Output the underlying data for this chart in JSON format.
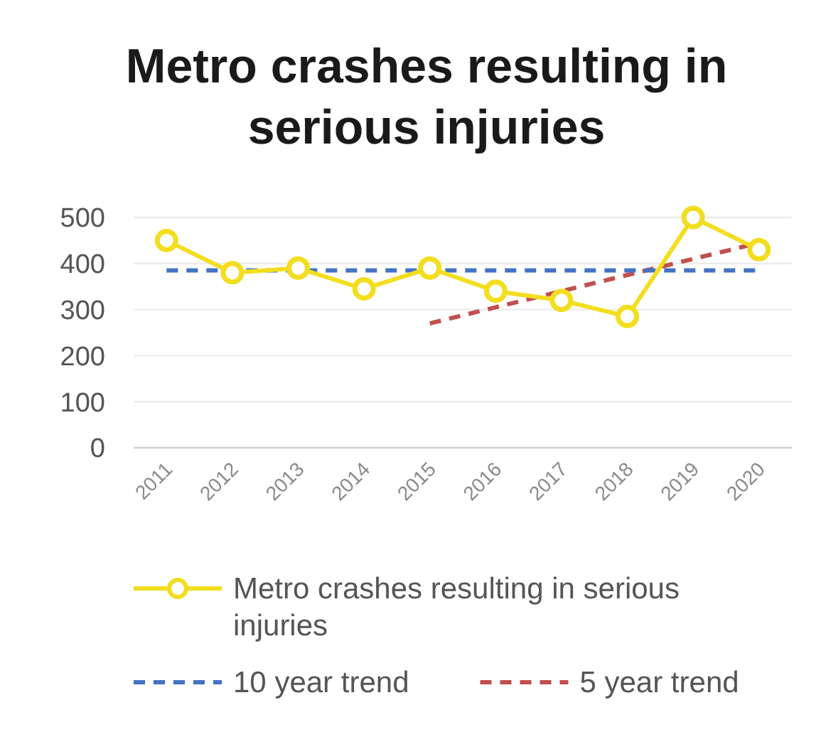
{
  "chart_data": {
    "type": "line",
    "title": "Metro crashes resulting in serious injuries",
    "categories": [
      "2011",
      "2012",
      "2013",
      "2014",
      "2015",
      "2016",
      "2017",
      "2018",
      "2019",
      "2020"
    ],
    "series": [
      {
        "name": "Metro crashes resulting in serious injuries",
        "color": "#f2de1e",
        "values": [
          450,
          380,
          390,
          345,
          390,
          340,
          320,
          285,
          500,
          430
        ]
      },
      {
        "name": "10 year trend",
        "color": "#4472c4",
        "values": [
          385,
          385,
          385,
          385,
          385,
          385,
          385,
          385,
          385,
          385
        ],
        "marker": "none",
        "line_style": "dashed"
      },
      {
        "name": "5 year trend",
        "color": "#c0504d",
        "values": [
          null,
          null,
          null,
          null,
          270,
          305,
          340,
          375,
          410,
          445
        ],
        "marker": "none",
        "line_style": "dashed"
      }
    ],
    "ylim": [
      0,
      500
    ],
    "yticks": [
      0,
      100,
      200,
      300,
      400,
      500
    ],
    "grid": "y",
    "legend": "bottom",
    "marker": "circle",
    "line_style": "solid"
  }
}
